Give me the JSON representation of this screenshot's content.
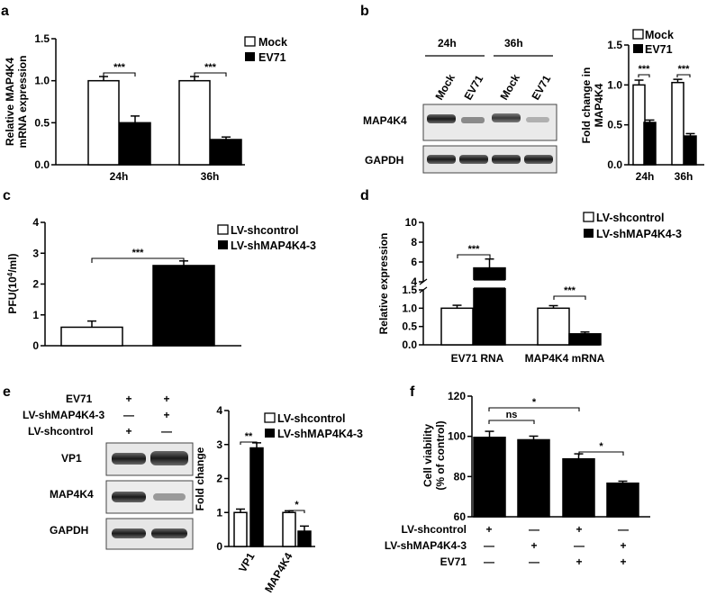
{
  "panels": {
    "a": "a",
    "b": "b",
    "c": "c",
    "d": "d",
    "e": "e",
    "f": "f"
  },
  "legend": {
    "mock": "Mock",
    "ev71": "EV71",
    "shcontrol": "LV-shcontrol",
    "shmap": "LV-shMAP4K4-3"
  },
  "blot_b": {
    "timepoints": [
      "24h",
      "36h"
    ],
    "lanes": [
      "Mock",
      "EV71",
      "Mock",
      "EV71"
    ],
    "rows": [
      "MAP4K4",
      "GAPDH"
    ]
  },
  "blot_e": {
    "treatment_rows": [
      "EV71",
      "LV-shMAP4K4-3",
      "LV-shcontrol"
    ],
    "signs": [
      [
        "+",
        "+"
      ],
      [
        "—",
        "+"
      ],
      [
        "+",
        "—"
      ]
    ],
    "rows": [
      "VP1",
      "MAP4K4",
      "GAPDH"
    ]
  },
  "panel_f_table": {
    "rows": [
      "LV-shcontrol",
      "LV-shMAP4K4-3",
      "EV71"
    ],
    "signs": [
      [
        "+",
        "—",
        "+",
        "—"
      ],
      [
        "—",
        "+",
        "—",
        "+"
      ],
      [
        "—",
        "—",
        "+",
        "+"
      ]
    ]
  },
  "chart_data": [
    {
      "panel": "a",
      "type": "bar",
      "ylabel": "Relative MAP4K4\nmRNA expression",
      "categories": [
        "24h",
        "36h"
      ],
      "series": [
        {
          "name": "Mock",
          "values": [
            1.0,
            1.0
          ],
          "errors": [
            0.05,
            0.05
          ]
        },
        {
          "name": "EV71",
          "values": [
            0.5,
            0.3
          ],
          "errors": [
            0.08,
            0.03
          ]
        }
      ],
      "ylim": [
        0,
        1.5
      ],
      "yticks": [
        "0.0",
        "0.5",
        "1.0",
        "1.5"
      ],
      "significance": [
        "***",
        "***"
      ],
      "legend": "top-right"
    },
    {
      "panel": "b",
      "type": "bar",
      "ylabel": "Fold change in\nMAP4K4",
      "categories": [
        "24h",
        "36h"
      ],
      "series": [
        {
          "name": "Mock",
          "values": [
            1.0,
            1.03
          ],
          "errors": [
            0.06,
            0.04
          ]
        },
        {
          "name": "EV71",
          "values": [
            0.53,
            0.36
          ],
          "errors": [
            0.03,
            0.03
          ]
        }
      ],
      "ylim": [
        0,
        1.5
      ],
      "yticks": [
        "0.0",
        "0.5",
        "1.0",
        "1.5"
      ],
      "significance": [
        "***",
        "***"
      ],
      "legend": "top-right"
    },
    {
      "panel": "c",
      "type": "bar",
      "ylabel": "PFU(10⁴/ml)",
      "categories": [
        "LV-shcontrol",
        "LV-shMAP4K4-3"
      ],
      "values": [
        0.6,
        2.6
      ],
      "errors": [
        0.2,
        0.15
      ],
      "ylim": [
        0,
        4
      ],
      "yticks": [
        "0",
        "1",
        "2",
        "3",
        "4"
      ],
      "significance": [
        "***"
      ],
      "legend": "top-right"
    },
    {
      "panel": "d",
      "type": "bar",
      "ylabel": "Relative expression",
      "categories": [
        "EV71 RNA",
        "MAP4K4 mRNA"
      ],
      "series": [
        {
          "name": "LV-shcontrol",
          "values": [
            1.0,
            1.0
          ],
          "errors": [
            0.08,
            0.07
          ]
        },
        {
          "name": "LV-shMAP4K4-3",
          "values": [
            5.4,
            0.3
          ],
          "errors": [
            0.9,
            0.05
          ]
        }
      ],
      "ylim": [
        0,
        10
      ],
      "axis_break": [
        1.5,
        4
      ],
      "yticks": [
        "0.0",
        "0.5",
        "1.0",
        "1.5",
        "4",
        "6",
        "8",
        "10"
      ],
      "significance": [
        "***",
        "***"
      ],
      "legend": "top-right"
    },
    {
      "panel": "e",
      "type": "bar",
      "ylabel": "Fold change",
      "categories": [
        "VP1",
        "MAP4K4"
      ],
      "series": [
        {
          "name": "LV-shcontrol",
          "values": [
            1.0,
            1.0
          ],
          "errors": [
            0.1,
            0.05
          ]
        },
        {
          "name": "LV-shMAP4K4-3",
          "values": [
            2.9,
            0.45
          ],
          "errors": [
            0.15,
            0.15
          ]
        }
      ],
      "ylim": [
        0,
        4
      ],
      "yticks": [
        "0",
        "1",
        "2",
        "3",
        "4"
      ],
      "significance": [
        "**",
        "*"
      ],
      "legend": "top-right"
    },
    {
      "panel": "f",
      "type": "bar",
      "ylabel": "Cell viability\n(% of control)",
      "values": [
        99.5,
        98.3,
        88.8,
        76.7
      ],
      "errors": [
        3.0,
        1.8,
        2.5,
        1.0
      ],
      "ylim": [
        60,
        120
      ],
      "yticks": [
        "60",
        "80",
        "100",
        "120"
      ],
      "significance": [
        "ns",
        "*",
        "*"
      ]
    }
  ]
}
